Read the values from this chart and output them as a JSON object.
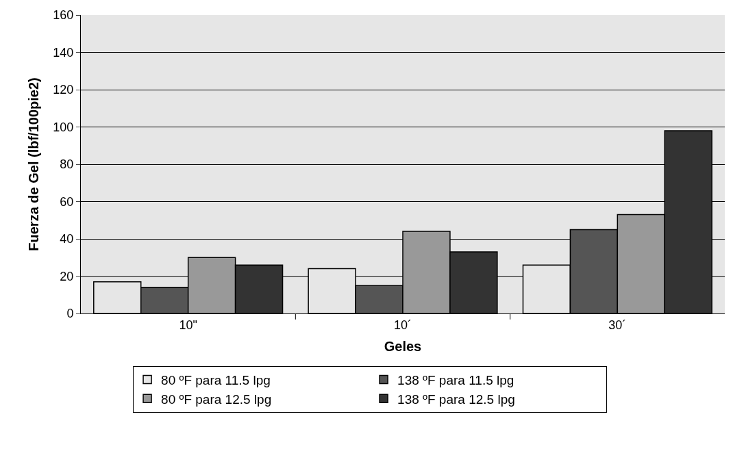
{
  "chart_data": {
    "type": "bar",
    "xlabel": "Geles",
    "ylabel": "Fuerza de Gel (lbf/100pie2)",
    "categories": [
      "10\"",
      "10´",
      "30´"
    ],
    "series": [
      {
        "name": "80 ºF para 11.5 lpg",
        "color": "#e6e6e6",
        "values": [
          17,
          24,
          26
        ]
      },
      {
        "name": "138 ºF para 11.5 lpg",
        "color": "#555555",
        "values": [
          14,
          15,
          45
        ]
      },
      {
        "name": "80 ºF para 12.5 lpg",
        "color": "#999999",
        "values": [
          30,
          44,
          53
        ]
      },
      {
        "name": "138 ºF para 12.5 lpg",
        "color": "#333333",
        "values": [
          26,
          33,
          98
        ]
      }
    ],
    "ylim": [
      0,
      160
    ],
    "yticks": [
      0,
      20,
      40,
      60,
      80,
      100,
      120,
      140,
      160
    ],
    "grid": "y",
    "legend": "bottom"
  }
}
